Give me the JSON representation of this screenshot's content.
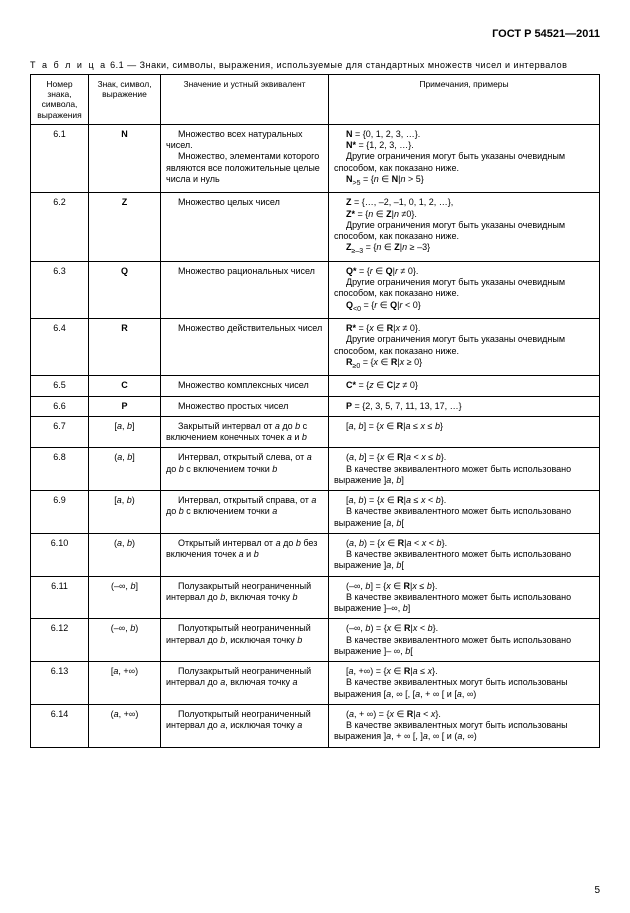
{
  "header": "ГОСТ Р 54521—2011",
  "caption_prefix": "Т а б л и ц а",
  "caption_num": "6.1",
  "caption_text": "— Знаки, символы, выражения, используемые для стандартных множеств чисел и интервалов",
  "columns": [
    "Номер знака, символа, выражения",
    "Знак, символ, выражение",
    "Значение и устный эквивалент",
    "Примечания, примеры"
  ],
  "rows": [
    {
      "num": "6.1",
      "sym": "<span class='b'>N</span>",
      "mean": "<span class='indent'>Множество всех натуральных чисел.</span><span class='indent'>Множество, элементами которого являются все положительные целые числа и нуль</span>",
      "note": "<span class='indent'><span class='b'>N</span> = {0, 1, 2, 3, …}.</span><span class='indent'><span class='b'>N*</span> = {1, 2, 3, …}.</span><span class='indent'>Другие ограничения могут быть указаны очевидным способом, как показано ниже.</span><span class='indent'><span class='b'>N</span><sub>&gt;5</sub> = {<span class='i'>n</span> ∈ <span class='b'>N</span>|<span class='i'>n</span> &gt; 5}</span>"
    },
    {
      "num": "6.2",
      "sym": "<span class='b'>Z</span>",
      "mean": "<span class='indent'>Множество целых чисел</span>",
      "note": "<span class='indent'><span class='b'>Z</span> = {…, –2, –1, 0, 1, 2, …},</span><span class='indent'><span class='b'>Z*</span> = {<span class='i'>n</span> ∈ <span class='b'>Z</span>|<span class='i'>n</span> ≠0}.</span><span class='indent'>Другие ограничения могут быть указаны очевидным способом, как показано ниже.</span><span class='indent'><span class='b'>Z</span><sub>≥–3</sub> = {<span class='i'>n</span> ∈ <span class='b'>Z</span>|<span class='i'>n</span> ≥ –3}</span>"
    },
    {
      "num": "6.3",
      "sym": "<span class='b'>Q</span>",
      "mean": "<span class='indent'>Множество рациональных чисел</span>",
      "note": "<span class='indent'><span class='b'>Q*</span> = {<span class='i'>r</span> ∈ <span class='b'>Q</span>|<span class='i'>r</span> ≠ 0}.</span><span class='indent'>Другие ограничения могут быть указаны очевидным способом, как показано ниже.</span><span class='indent'><span class='b'>Q</span><sub>&lt;0</sub> = {<span class='i'>r</span> ∈ <span class='b'>Q</span>|<span class='i'>r</span> &lt; 0}</span>"
    },
    {
      "num": "6.4",
      "sym": "<span class='b'>R</span>",
      "mean": "<span class='indent'>Множество действительных чисел</span>",
      "note": "<span class='indent'><span class='b'>R*</span> = {<span class='i'>x</span> ∈ <span class='b'>R</span>|<span class='i'>x</span> ≠  0}.</span><span class='indent'>Другие ограничения могут быть указаны очевидным способом, как показано ниже.</span><span class='indent'><span class='b'>R</span><sub>≥0</sub> = {<span class='i'>x</span> ∈ <span class='b'>R</span>|<span class='i'>x</span> ≥ 0}</span>"
    },
    {
      "num": "6.5",
      "sym": "<span class='b'>C</span>",
      "mean": "<span class='indent'>Множество комплексных чисел</span>",
      "note": "<span class='indent'><span class='b'>C*</span> = {<span class='i'>z</span> ∈ <span class='b'>C</span>|<span class='i'>z</span> ≠ 0}</span>"
    },
    {
      "num": "6.6",
      "sym": "<span class='b'>P</span>",
      "mean": "<span class='indent'>Множество простых чисел</span>",
      "note": "<span class='indent'><span class='b'>P</span> = {2, 3, 5, 7, 11, 13, 17, …}</span>"
    },
    {
      "num": "6.7",
      "sym": "[<span class='i'>a</span>, <span class='i'>b</span>]",
      "mean": "<span class='indent'>Закрытый интервал от <span class='i'>a</span> до <span class='i'>b</span> с включением конечных точек <span class='i'>a</span> и <span class='i'>b</span></span>",
      "note": "<span class='indent'>[<span class='i'>a</span>, <span class='i'>b</span>] = {<span class='i'>x</span> ∈ <span class='b'>R</span>|<span class='i'>a</span> ≤ <span class='i'>x</span> ≤ <span class='i'>b</span>}</span>"
    },
    {
      "num": "6.8",
      "sym": "(<span class='i'>a</span>, <span class='i'>b</span>]",
      "mean": "<span class='indent'>Интервал, открытый слева, от <span class='i'>a</span> до <span class='i'>b</span> с включением точки <span class='i'>b</span></span>",
      "note": "<span class='indent'>(<span class='i'>a</span>, <span class='i'>b</span>] = {<span class='i'>x</span> ∈ <span class='b'>R</span>|<span class='i'>a</span> &lt; <span class='i'>x</span> ≤ <span class='i'>b</span>}.</span><span class='indent'>В качестве эквивалентного может быть использовано выражение ]<span class='i'>a</span>, <span class='i'>b</span>]</span>"
    },
    {
      "num": "6.9",
      "sym": "[<span class='i'>a</span>, <span class='i'>b</span>)",
      "mean": "<span class='indent'>Интервал, открытый справа, от <span class='i'>a</span> до <span class='i'>b</span> с включением точки <span class='i'>a</span></span>",
      "note": "<span class='indent'>[<span class='i'>a</span>, <span class='i'>b</span>) = {<span class='i'>x</span> ∈ <span class='b'>R</span>|<span class='i'>a</span> ≤ <span class='i'>x</span> &lt; <span class='i'>b</span>}.</span><span class='indent'>В качестве эквивалентного может быть использовано выражение [<span class='i'>a</span>, <span class='i'>b</span>[</span>"
    },
    {
      "num": "6.10",
      "sym": "(<span class='i'>a</span>, <span class='i'>b</span>)",
      "mean": "<span class='indent'>Открытый интервал от <span class='i'>a</span> до <span class='i'>b</span> без включения точек <span class='i'>a</span> и <span class='i'>b</span></span>",
      "note": "<span class='indent'>(<span class='i'>a</span>, <span class='i'>b</span>) = {<span class='i'>x</span> ∈ <span class='b'>R</span>|<span class='i'>a</span> &lt; <span class='i'>x</span> &lt; <span class='i'>b</span>}.</span><span class='indent'>В качестве эквивалентного может быть использовано выражение ]<span class='i'>a</span>, <span class='i'>b</span>[</span>"
    },
    {
      "num": "6.11",
      "sym": "(–∞, <span class='i'>b</span>]",
      "mean": "<span class='indent'>Полузакрытый неограниченный интервал до <span class='i'>b</span>, включая точку <span class='i'>b</span></span>",
      "note": "<span class='indent'>(–∞, <span class='i'>b</span>] = {<span class='i'>x</span> ∈ <span class='b'>R</span>|<span class='i'>x</span> ≤ <span class='i'>b</span>}.</span><span class='indent'>В качестве эквивалентного может быть использовано выражение  ]–∞, <span class='i'>b</span>]</span>"
    },
    {
      "num": "6.12",
      "sym": "(–∞, <span class='i'>b</span>)",
      "mean": "<span class='indent'>Полуоткрытый неограниченный интервал до <span class='i'>b</span>, исключая точку <span class='i'>b</span></span>",
      "note": "<span class='indent'>(–∞, <span class='i'>b</span>) = {<span class='i'>x</span> ∈ <span class='b'>R</span>|<span class='i'>x</span> &lt; <span class='i'>b</span>}.</span><span class='indent'>В качестве эквивалентного может быть использовано выражение ]– ∞, <span class='i'>b</span>[</span>"
    },
    {
      "num": "6.13",
      "sym": "[<span class='i'>a</span>, +∞)",
      "mean": "<span class='indent'>Полузакрытый неограниченный интервал до <span class='i'>a</span>, включая точку <span class='i'>a</span></span>",
      "note": "<span class='indent'>[<span class='i'>a</span>, +∞) = {<span class='i'>x</span> ∈  <span class='b'>R</span>|<span class='i'>a</span> ≤ <span class='i'>x</span>}.</span><span class='indent'>В качестве эквивалентных могут быть использованы выражения [<span class='i'>a</span>, ∞ [,  [<span class='i'>a</span>, + ∞ [ и [<span class='i'>a</span>, ∞)</span>"
    },
    {
      "num": "6.14",
      "sym": "(<span class='i'>a</span>, +∞)",
      "mean": "<span class='indent'>Полуоткрытый неограниченный интервал до <span class='i'>a</span>, исключая точку <span class='i'>a</span></span>",
      "note": "<span class='indent'>(<span class='i'>a</span>, + ∞) = {<span class='i'>x</span> ∈ <span class='b'>R</span>|<span class='i'>a</span> &lt; <span class='i'>x</span>}.</span><span class='indent'>В качестве эквивалентных могут быть использованы выражения ]<span class='i'>a</span>, + ∞ [, ]<span class='i'>a</span>, ∞ [ и (<span class='i'>a</span>, ∞)</span>"
    }
  ],
  "page_number": "5"
}
